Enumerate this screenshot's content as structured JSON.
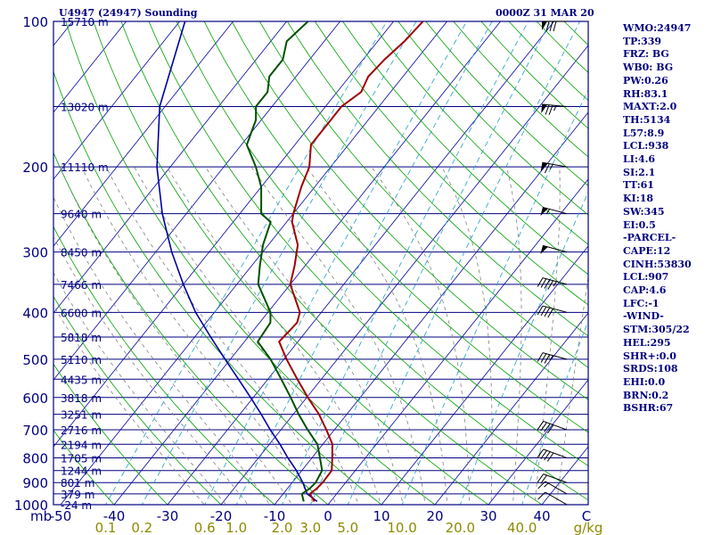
{
  "header": {
    "station": "U4947 (24947) Sounding",
    "valid_time": "0000Z 31 MAR 20"
  },
  "indices": [
    "WMO:24947",
    "TP:339",
    "FRZ: BG",
    "WB0: BG",
    "PW:0.26",
    "RH:83.1",
    "MAXT:2.0",
    "TH:5134",
    "L57:8.9",
    "LCL:938",
    "LI:4.6",
    "SI:2.1",
    "TT:61",
    "KI:18",
    "SW:345",
    "EI:0.5",
    "-PARCEL-",
    "CAPE:12",
    "CINH:53830",
    "LCL:907",
    "CAP:4.6",
    "LFC:-1",
    "-WIND-",
    "STM:305/22",
    "HEL:295",
    "SHR+:0.0",
    "SRDS:108",
    "EHI:0.0",
    "BRN:0.2",
    "BSHR:67"
  ],
  "colors": {
    "isobar": "#000080",
    "isotherm": "#0000a0",
    "dry_adiabat": "#00a000",
    "moist_adiabat": "#808080",
    "mixing_ratio": "#20a0c0",
    "temperature": "#a00000",
    "dewpoint": "#005000",
    "parcel": "#0000a0",
    "text": "#000080",
    "mixing_ratio_labels": "#8b8b00"
  },
  "chart_data": {
    "type": "skew-t",
    "title": "U4947 (24947) Sounding",
    "pressure_unit": "mb",
    "temperature_unit": "C",
    "mixing_ratio_unit": "g/kg",
    "pressure_levels": [
      100,
      200,
      300,
      400,
      500,
      600,
      700,
      800,
      900,
      1000
    ],
    "temperature_ticks": [
      -50,
      -40,
      -30,
      -20,
      -10,
      0,
      10,
      20,
      30,
      40
    ],
    "mixing_ratio_ticks": [
      "0.1",
      "0.2",
      "0.6",
      "1.0",
      "2.0",
      "3.0",
      "5.0",
      "10.0",
      "20.0",
      "40.0"
    ],
    "height_labels": [
      {
        "p": 100,
        "label": "15710 m"
      },
      {
        "p": 150,
        "label": "13020 m"
      },
      {
        "p": 200,
        "label": "11110 m"
      },
      {
        "p": 250,
        "label": "9640 m"
      },
      {
        "p": 300,
        "label": "8450 m"
      },
      {
        "p": 350,
        "label": "7466 m"
      },
      {
        "p": 400,
        "label": "6600 m"
      },
      {
        "p": 450,
        "label": "5818 m"
      },
      {
        "p": 500,
        "label": "5110 m"
      },
      {
        "p": 550,
        "label": "4435 m"
      },
      {
        "p": 600,
        "label": "3818 m"
      },
      {
        "p": 650,
        "label": "3251 m"
      },
      {
        "p": 700,
        "label": "2716 m"
      },
      {
        "p": 750,
        "label": "2194 m"
      },
      {
        "p": 800,
        "label": "1705 m"
      },
      {
        "p": 850,
        "label": "1244 m"
      },
      {
        "p": 900,
        "label": "801 m"
      },
      {
        "p": 950,
        "label": "379 m"
      },
      {
        "p": 1000,
        "label": "-24 m"
      }
    ],
    "temperature_profile": [
      {
        "p": 985,
        "t": -3.0
      },
      {
        "p": 950,
        "t": -5.0
      },
      {
        "p": 925,
        "t": -4.5
      },
      {
        "p": 900,
        "t": -4.3
      },
      {
        "p": 850,
        "t": -4.4
      },
      {
        "p": 800,
        "t": -6.2
      },
      {
        "p": 750,
        "t": -8.2
      },
      {
        "p": 700,
        "t": -11.5
      },
      {
        "p": 650,
        "t": -15.2
      },
      {
        "p": 600,
        "t": -19.8
      },
      {
        "p": 550,
        "t": -24.5
      },
      {
        "p": 500,
        "t": -29.5
      },
      {
        "p": 460,
        "t": -33.5
      },
      {
        "p": 420,
        "t": -33.0
      },
      {
        "p": 400,
        "t": -34.0
      },
      {
        "p": 350,
        "t": -40.0
      },
      {
        "p": 320,
        "t": -42.0
      },
      {
        "p": 290,
        "t": -44.5
      },
      {
        "p": 260,
        "t": -49.0
      },
      {
        "p": 250,
        "t": -50.0
      },
      {
        "p": 220,
        "t": -52.5
      },
      {
        "p": 200,
        "t": -54.0
      },
      {
        "p": 180,
        "t": -57.0
      },
      {
        "p": 160,
        "t": -57.0
      },
      {
        "p": 150,
        "t": -57.0
      },
      {
        "p": 140,
        "t": -55.5
      },
      {
        "p": 130,
        "t": -56.5
      },
      {
        "p": 120,
        "t": -56.0
      },
      {
        "p": 110,
        "t": -55.0
      },
      {
        "p": 100,
        "t": -54.5
      }
    ],
    "dewpoint_profile": [
      {
        "p": 985,
        "t": -5.0
      },
      {
        "p": 950,
        "t": -6.5
      },
      {
        "p": 925,
        "t": -5.8
      },
      {
        "p": 900,
        "t": -5.6
      },
      {
        "p": 850,
        "t": -6.2
      },
      {
        "p": 800,
        "t": -8.5
      },
      {
        "p": 750,
        "t": -11.0
      },
      {
        "p": 700,
        "t": -15.0
      },
      {
        "p": 650,
        "t": -19.0
      },
      {
        "p": 600,
        "t": -23.0
      },
      {
        "p": 550,
        "t": -27.5
      },
      {
        "p": 500,
        "t": -32.5
      },
      {
        "p": 460,
        "t": -37.5
      },
      {
        "p": 420,
        "t": -38.0
      },
      {
        "p": 400,
        "t": -39.5
      },
      {
        "p": 350,
        "t": -46.0
      },
      {
        "p": 320,
        "t": -48.5
      },
      {
        "p": 290,
        "t": -51.0
      },
      {
        "p": 260,
        "t": -53.0
      },
      {
        "p": 250,
        "t": -56.0
      },
      {
        "p": 220,
        "t": -60.0
      },
      {
        "p": 200,
        "t": -64.0
      },
      {
        "p": 180,
        "t": -69.0
      },
      {
        "p": 160,
        "t": -71.0
      },
      {
        "p": 150,
        "t": -73.0
      },
      {
        "p": 140,
        "t": -73.0
      },
      {
        "p": 130,
        "t": -75.0
      },
      {
        "p": 120,
        "t": -75.0
      },
      {
        "p": 110,
        "t": -77.0
      },
      {
        "p": 100,
        "t": -76.0
      }
    ],
    "parcel_profile": [
      {
        "p": 985,
        "t": -2.5
      },
      {
        "p": 950,
        "t": -5.5
      },
      {
        "p": 900,
        "t": -8.0
      },
      {
        "p": 850,
        "t": -11.0
      },
      {
        "p": 800,
        "t": -14.5
      },
      {
        "p": 750,
        "t": -18.0
      },
      {
        "p": 700,
        "t": -22.0
      },
      {
        "p": 650,
        "t": -26.0
      },
      {
        "p": 600,
        "t": -30.5
      },
      {
        "p": 550,
        "t": -35.5
      },
      {
        "p": 500,
        "t": -41.0
      },
      {
        "p": 450,
        "t": -47.0
      },
      {
        "p": 400,
        "t": -53.5
      },
      {
        "p": 350,
        "t": -60.0
      },
      {
        "p": 300,
        "t": -67.0
      },
      {
        "p": 250,
        "t": -74.5
      },
      {
        "p": 200,
        "t": -82.5
      },
      {
        "p": 150,
        "t": -91.0
      },
      {
        "p": 100,
        "t": -99.0
      }
    ],
    "wind_barbs": [
      {
        "p": 100,
        "dir": 270,
        "speed_kt": 80
      },
      {
        "p": 150,
        "dir": 275,
        "speed_kt": 75
      },
      {
        "p": 200,
        "dir": 280,
        "speed_kt": 65
      },
      {
        "p": 250,
        "dir": 285,
        "speed_kt": 55
      },
      {
        "p": 300,
        "dir": 285,
        "speed_kt": 50
      },
      {
        "p": 350,
        "dir": 285,
        "speed_kt": 45
      },
      {
        "p": 400,
        "dir": 285,
        "speed_kt": 40
      },
      {
        "p": 500,
        "dir": 285,
        "speed_kt": 35
      },
      {
        "p": 700,
        "dir": 290,
        "speed_kt": 40
      },
      {
        "p": 800,
        "dir": 290,
        "speed_kt": 40
      },
      {
        "p": 900,
        "dir": 290,
        "speed_kt": 20
      },
      {
        "p": 950,
        "dir": 300,
        "speed_kt": 15
      },
      {
        "p": 1000,
        "dir": 300,
        "speed_kt": 10
      }
    ]
  }
}
